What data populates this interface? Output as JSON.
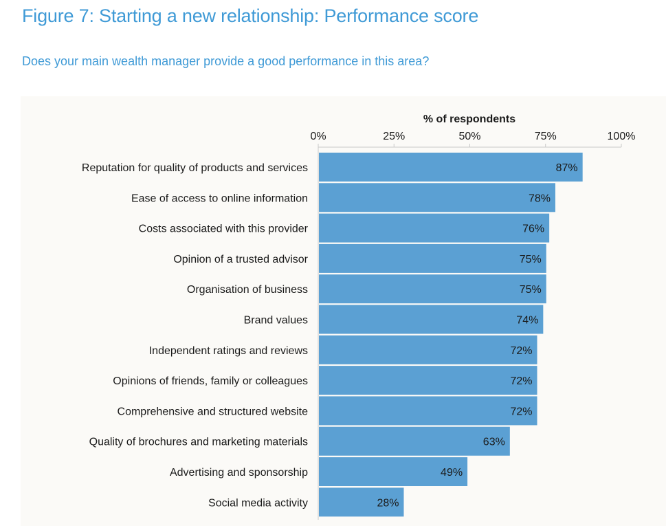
{
  "figure": {
    "title": "Figure 7: Starting a new relationship: Performance score",
    "subtitle": "Does your main wealth manager provide a good performance in this area?"
  },
  "colors": {
    "accent": "#3f9ad6",
    "bar": "#5ba0d3",
    "panel": "#fbfaf7"
  },
  "chart_data": {
    "type": "bar",
    "orientation": "horizontal",
    "title": "",
    "xlabel": "% of respondents",
    "ylabel": "",
    "xlim": [
      0,
      100
    ],
    "ticks": [
      0,
      25,
      50,
      75,
      100
    ],
    "tick_labels": [
      "0%",
      "25%",
      "50%",
      "75%",
      "100%"
    ],
    "legend": "none",
    "categories": [
      "Reputation for quality of products and services",
      "Ease of access to online information",
      "Costs associated with this provider",
      "Opinion of a trusted advisor",
      "Organisation of business",
      "Brand values",
      "Independent ratings and reviews",
      "Opinions of friends, family or colleagues",
      "Comprehensive and structured website",
      "Quality of brochures and marketing materials",
      "Advertising and sponsorship",
      "Social media activity"
    ],
    "values": [
      87,
      78,
      76,
      75,
      75,
      74,
      72,
      72,
      72,
      63,
      49,
      28
    ],
    "value_labels": [
      "87%",
      "78%",
      "76%",
      "75%",
      "75%",
      "74%",
      "72%",
      "72%",
      "72%",
      "63%",
      "49%",
      "28%"
    ]
  }
}
